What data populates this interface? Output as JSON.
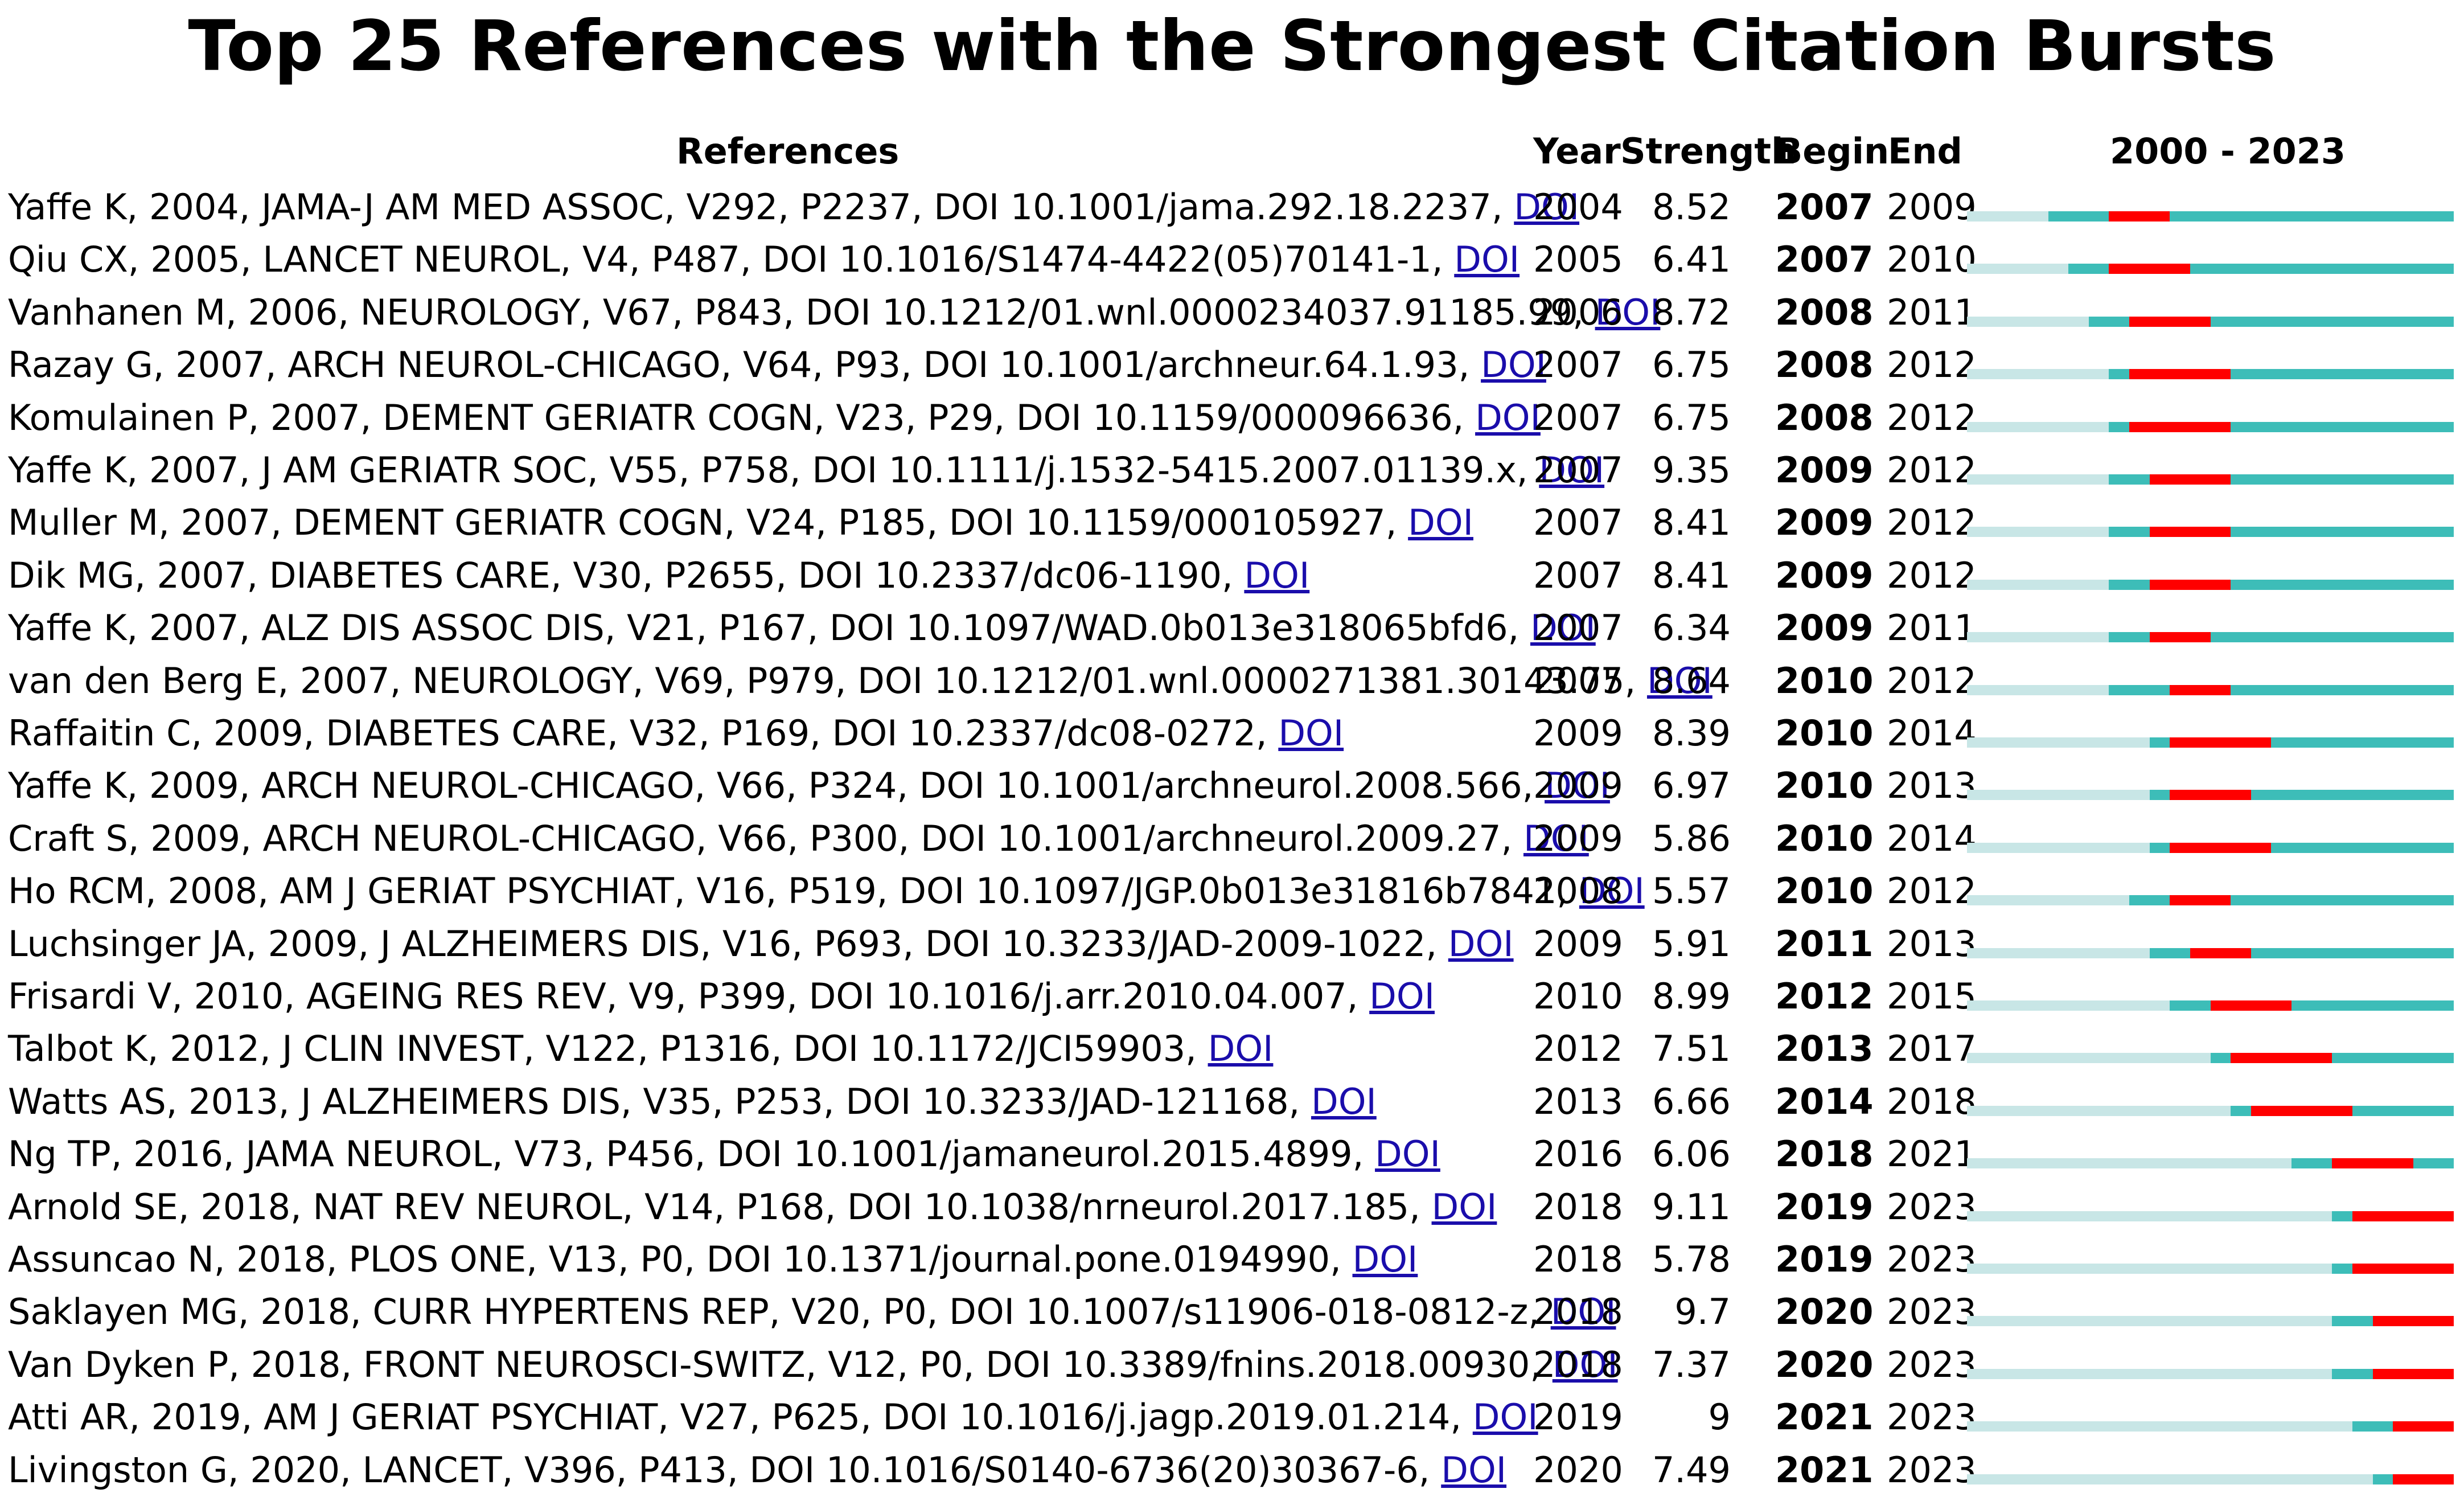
{
  "chart_data": {
    "type": "table",
    "title": "Top 25 References with the Strongest Citation Bursts",
    "columns": [
      "References",
      "Year",
      "Strength",
      "Begin",
      "End",
      "2000 - 2023"
    ],
    "timeline_start": 2000,
    "timeline_end": 2023,
    "colors": {
      "pre_publication": "#c8e6e6",
      "active": "#3dbdb8",
      "burst": "#ff0000",
      "link": "#1a0dab"
    },
    "rows": [
      {
        "ref": "Yaffe K, 2004, JAMA-J AM MED ASSOC, V292, P2237, DOI 10.1001/jama.292.18.2237, ",
        "doi": "DOI",
        "year": 2004,
        "strength": "8.52",
        "begin": 2007,
        "end": 2009
      },
      {
        "ref": "Qiu CX, 2005, LANCET NEUROL, V4, P487, DOI 10.1016/S1474-4422(05)70141-1, ",
        "doi": "DOI",
        "year": 2005,
        "strength": "6.41",
        "begin": 2007,
        "end": 2010
      },
      {
        "ref": "Vanhanen M, 2006, NEUROLOGY, V67, P843, DOI 10.1212/01.wnl.0000234037.91185.99, ",
        "doi": "DOI",
        "year": 2006,
        "strength": "8.72",
        "begin": 2008,
        "end": 2011
      },
      {
        "ref": "Razay G, 2007, ARCH NEUROL-CHICAGO, V64, P93, DOI 10.1001/archneur.64.1.93, ",
        "doi": "DOI",
        "year": 2007,
        "strength": "6.75",
        "begin": 2008,
        "end": 2012
      },
      {
        "ref": "Komulainen P, 2007, DEMENT GERIATR COGN, V23, P29, DOI 10.1159/000096636, ",
        "doi": "DOI",
        "year": 2007,
        "strength": "6.75",
        "begin": 2008,
        "end": 2012
      },
      {
        "ref": "Yaffe K, 2007, J AM GERIATR SOC, V55, P758, DOI 10.1111/j.1532-5415.2007.01139.x, ",
        "doi": "DOI",
        "year": 2007,
        "strength": "9.35",
        "begin": 2009,
        "end": 2012
      },
      {
        "ref": "Muller M, 2007, DEMENT GERIATR COGN, V24, P185, DOI 10.1159/000105927, ",
        "doi": "DOI",
        "year": 2007,
        "strength": "8.41",
        "begin": 2009,
        "end": 2012
      },
      {
        "ref": "Dik MG, 2007, DIABETES CARE, V30, P2655, DOI 10.2337/dc06-1190, ",
        "doi": "DOI",
        "year": 2007,
        "strength": "8.41",
        "begin": 2009,
        "end": 2012
      },
      {
        "ref": "Yaffe K, 2007, ALZ DIS ASSOC DIS, V21, P167, DOI 10.1097/WAD.0b013e318065bfd6, ",
        "doi": "DOI",
        "year": 2007,
        "strength": "6.34",
        "begin": 2009,
        "end": 2011
      },
      {
        "ref": "van den Berg E, 2007, NEUROLOGY, V69, P979, DOI 10.1212/01.wnl.0000271381.30143.75, ",
        "doi": "DOI",
        "year": 2007,
        "strength": "8.64",
        "begin": 2010,
        "end": 2012
      },
      {
        "ref": "Raffaitin C, 2009, DIABETES CARE, V32, P169, DOI 10.2337/dc08-0272, ",
        "doi": "DOI",
        "year": 2009,
        "strength": "8.39",
        "begin": 2010,
        "end": 2014
      },
      {
        "ref": "Yaffe K, 2009, ARCH NEUROL-CHICAGO, V66, P324, DOI 10.1001/archneurol.2008.566, ",
        "doi": "DOI",
        "year": 2009,
        "strength": "6.97",
        "begin": 2010,
        "end": 2013
      },
      {
        "ref": "Craft S, 2009, ARCH NEUROL-CHICAGO, V66, P300, DOI 10.1001/archneurol.2009.27, ",
        "doi": "DOI",
        "year": 2009,
        "strength": "5.86",
        "begin": 2010,
        "end": 2014
      },
      {
        "ref": "Ho RCM, 2008, AM J GERIAT PSYCHIAT, V16, P519, DOI 10.1097/JGP.0b013e31816b7841, ",
        "doi": "DOI",
        "year": 2008,
        "strength": "5.57",
        "begin": 2010,
        "end": 2012
      },
      {
        "ref": "Luchsinger JA, 2009, J ALZHEIMERS DIS, V16, P693, DOI 10.3233/JAD-2009-1022, ",
        "doi": "DOI",
        "year": 2009,
        "strength": "5.91",
        "begin": 2011,
        "end": 2013
      },
      {
        "ref": "Frisardi V, 2010, AGEING RES REV, V9, P399, DOI 10.1016/j.arr.2010.04.007, ",
        "doi": "DOI",
        "year": 2010,
        "strength": "8.99",
        "begin": 2012,
        "end": 2015
      },
      {
        "ref": "Talbot K, 2012, J CLIN INVEST, V122, P1316, DOI 10.1172/JCI59903, ",
        "doi": "DOI",
        "year": 2012,
        "strength": "7.51",
        "begin": 2013,
        "end": 2017
      },
      {
        "ref": "Watts AS, 2013, J ALZHEIMERS DIS, V35, P253, DOI 10.3233/JAD-121168, ",
        "doi": "DOI",
        "year": 2013,
        "strength": "6.66",
        "begin": 2014,
        "end": 2018
      },
      {
        "ref": "Ng TP, 2016, JAMA NEUROL, V73, P456, DOI 10.1001/jamaneurol.2015.4899, ",
        "doi": "DOI",
        "year": 2016,
        "strength": "6.06",
        "begin": 2018,
        "end": 2021
      },
      {
        "ref": "Arnold SE, 2018, NAT REV NEUROL, V14, P168, DOI 10.1038/nrneurol.2017.185, ",
        "doi": "DOI",
        "year": 2018,
        "strength": "9.11",
        "begin": 2019,
        "end": 2023
      },
      {
        "ref": "Assuncao N, 2018, PLOS ONE, V13, P0, DOI 10.1371/journal.pone.0194990, ",
        "doi": "DOI",
        "year": 2018,
        "strength": "5.78",
        "begin": 2019,
        "end": 2023
      },
      {
        "ref": "Saklayen MG, 2018, CURR HYPERTENS REP, V20, P0, DOI 10.1007/s11906-018-0812-z, ",
        "doi": "DOI",
        "year": 2018,
        "strength": "9.7",
        "begin": 2020,
        "end": 2023
      },
      {
        "ref": "Van Dyken P, 2018, FRONT NEUROSCI-SWITZ, V12, P0, DOI 10.3389/fnins.2018.00930, ",
        "doi": "DOI",
        "year": 2018,
        "strength": "7.37",
        "begin": 2020,
        "end": 2023
      },
      {
        "ref": "Atti AR, 2019, AM J GERIAT PSYCHIAT, V27, P625, DOI 10.1016/j.jagp.2019.01.214, ",
        "doi": "DOI",
        "year": 2019,
        "strength": "9",
        "begin": 2021,
        "end": 2023
      },
      {
        "ref": "Livingston G, 2020, LANCET, V396, P413, DOI 10.1016/S0140-6736(20)30367-6, ",
        "doi": "DOI",
        "year": 2020,
        "strength": "7.49",
        "begin": 2021,
        "end": 2023
      }
    ]
  }
}
